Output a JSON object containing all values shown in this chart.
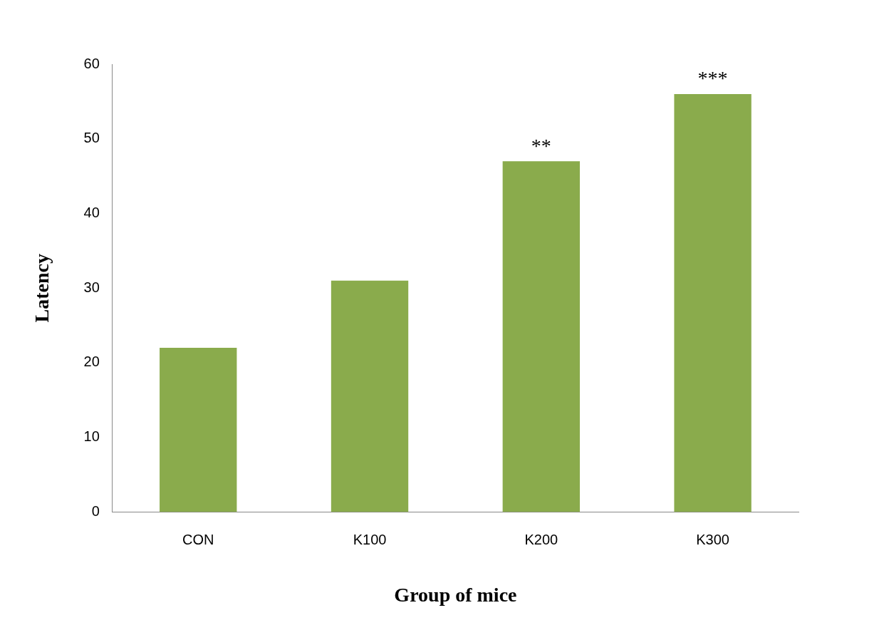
{
  "chart_data": {
    "type": "bar",
    "xlabel": "Group of mice",
    "ylabel": "Latency",
    "categories": [
      "CON",
      "K100",
      "K200",
      "K300"
    ],
    "values": [
      22,
      31,
      47,
      56
    ],
    "color": "#8aab4c",
    "ylim": [
      0,
      60
    ],
    "yticks": [
      0,
      10,
      20,
      30,
      40,
      50,
      60
    ],
    "grid": false,
    "legend": false,
    "annotations": [
      {
        "text": "**",
        "x": "K200",
        "y": 47
      },
      {
        "text": "***",
        "x": "K300",
        "y": 56
      }
    ]
  }
}
